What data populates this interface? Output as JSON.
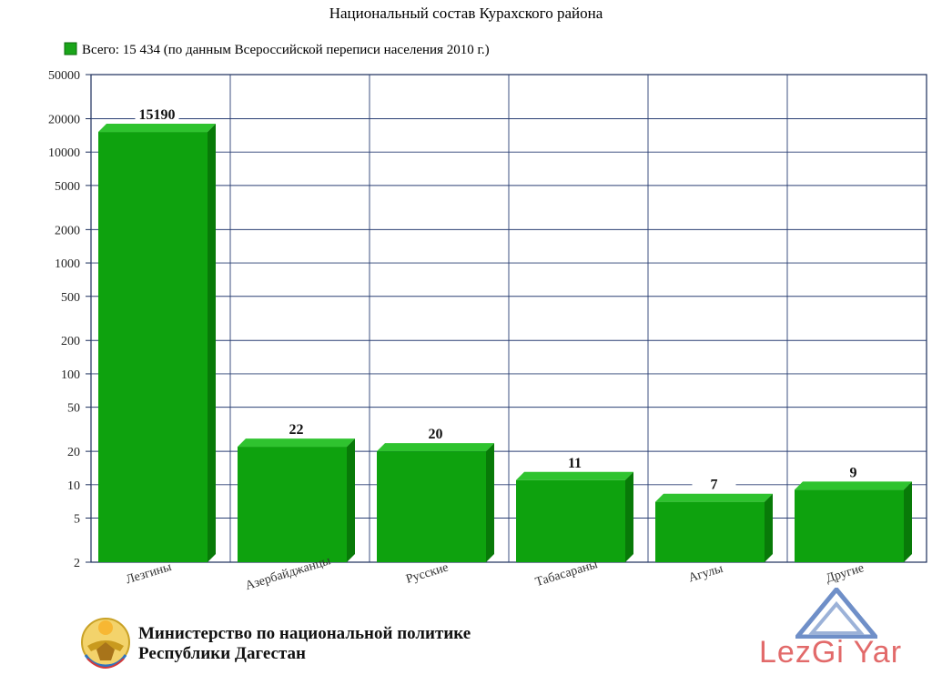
{
  "chart_data": {
    "type": "bar",
    "title": "Национальный состав Курахского района",
    "legend": {
      "label": "Всего: 15 434 (по данным Всероссийской переписи населения 2010 г.)",
      "placement": "top-left",
      "color": "#1aa51a"
    },
    "scale": "log",
    "ylim": [
      2,
      50000
    ],
    "yticks": [
      2,
      5,
      10,
      20,
      50,
      100,
      200,
      500,
      1000,
      2000,
      5000,
      10000,
      20000,
      50000
    ],
    "grid": true,
    "categories": [
      "Лезгины",
      "Азербайджанцы",
      "Русские",
      "Табасараны",
      "Агулы",
      "Другие"
    ],
    "values": [
      15190,
      22,
      20,
      11,
      7,
      9
    ],
    "bar_colors": {
      "front": "#0ea20e",
      "top": "#2fc32f",
      "side": "#087a08"
    }
  },
  "footer": {
    "ministry_line1": "Министерство по национальной политике",
    "ministry_line2": "Республики Дагестан"
  },
  "watermark": {
    "text": "LezGi Yar",
    "color": "#e26a6a"
  },
  "icons": {
    "emblem": "dagestan-emblem-icon",
    "logo": "mountain-logo-icon"
  }
}
